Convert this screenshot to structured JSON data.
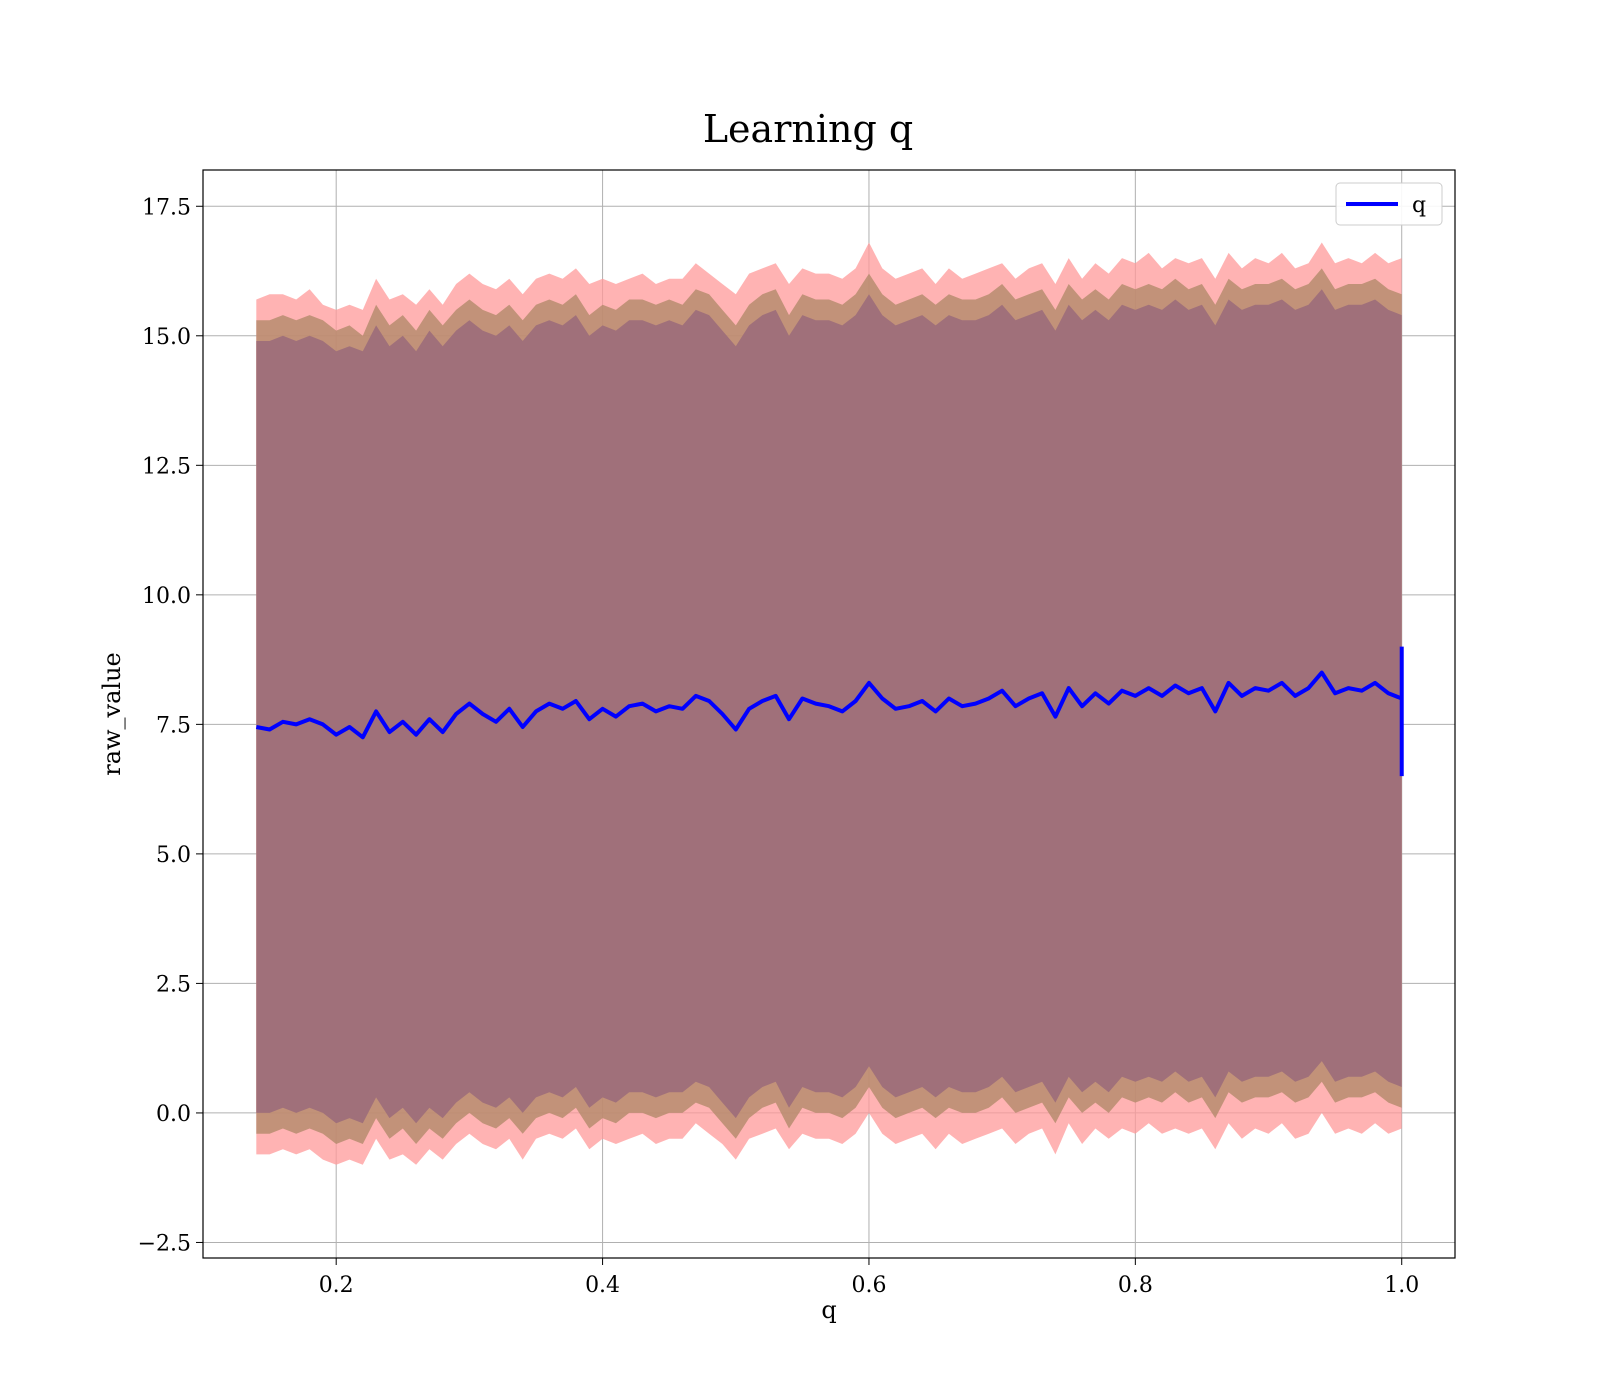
{
  "chart_data": {
    "type": "line",
    "title": "Learning q",
    "xlabel": "q",
    "ylabel": "raw_value",
    "xlim": [
      0.1,
      1.04
    ],
    "ylim": [
      -2.8,
      18.2
    ],
    "xticks": [
      0.2,
      0.4,
      0.6,
      0.8,
      1.0
    ],
    "xtick_labels": [
      "0.2",
      "0.4",
      "0.6",
      "0.8",
      "1.0"
    ],
    "yticks": [
      -2.5,
      0.0,
      2.5,
      5.0,
      7.5,
      10.0,
      12.5,
      15.0,
      17.5
    ],
    "ytick_labels": [
      "−2.5",
      "0.0",
      "2.5",
      "5.0",
      "7.5",
      "10.0",
      "12.5",
      "15.0",
      "17.5"
    ],
    "grid": true,
    "legend": {
      "position": "top-right",
      "entries": [
        "q"
      ]
    },
    "colors": {
      "line": "#0000ff",
      "outer_band": "#ff9999",
      "middle_band": "#b38a6a",
      "inner_band": "#a0707a",
      "grid": "#b0b0b0"
    },
    "series": [
      {
        "name": "q",
        "x": [
          0.14,
          0.15,
          0.16,
          0.17,
          0.18,
          0.19,
          0.2,
          0.21,
          0.22,
          0.23,
          0.24,
          0.25,
          0.26,
          0.27,
          0.28,
          0.29,
          0.3,
          0.31,
          0.32,
          0.33,
          0.34,
          0.35,
          0.36,
          0.37,
          0.38,
          0.39,
          0.4,
          0.41,
          0.42,
          0.43,
          0.44,
          0.45,
          0.46,
          0.47,
          0.48,
          0.49,
          0.5,
          0.51,
          0.52,
          0.53,
          0.54,
          0.55,
          0.56,
          0.57,
          0.58,
          0.59,
          0.6,
          0.61,
          0.62,
          0.63,
          0.64,
          0.65,
          0.66,
          0.67,
          0.68,
          0.69,
          0.7,
          0.71,
          0.72,
          0.73,
          0.74,
          0.75,
          0.76,
          0.77,
          0.78,
          0.79,
          0.8,
          0.81,
          0.82,
          0.83,
          0.84,
          0.85,
          0.86,
          0.87,
          0.88,
          0.89,
          0.9,
          0.91,
          0.92,
          0.93,
          0.94,
          0.95,
          0.96,
          0.97,
          0.98,
          0.99,
          1.0
        ],
        "y": [
          7.45,
          7.4,
          7.55,
          7.5,
          7.6,
          7.5,
          7.3,
          7.45,
          7.25,
          7.75,
          7.35,
          7.55,
          7.3,
          7.6,
          7.35,
          7.7,
          7.9,
          7.7,
          7.55,
          7.8,
          7.45,
          7.75,
          7.9,
          7.8,
          7.95,
          7.6,
          7.8,
          7.65,
          7.85,
          7.9,
          7.75,
          7.85,
          7.8,
          8.05,
          7.95,
          7.7,
          7.4,
          7.8,
          7.95,
          8.05,
          7.6,
          8.0,
          7.9,
          7.85,
          7.75,
          7.95,
          8.3,
          8.0,
          7.8,
          7.85,
          7.95,
          7.75,
          8.0,
          7.85,
          7.9,
          8.0,
          8.15,
          7.85,
          8.0,
          8.1,
          7.65,
          8.2,
          7.85,
          8.1,
          7.9,
          8.15,
          8.05,
          8.2,
          8.05,
          8.25,
          8.1,
          8.2,
          7.75,
          8.3,
          8.05,
          8.2,
          8.15,
          8.3,
          8.05,
          8.2,
          8.5,
          8.1,
          8.2,
          8.15,
          8.3,
          8.1,
          8.0
        ],
        "end_spike": [
          6.5,
          9.0
        ]
      }
    ],
    "bands": [
      {
        "name": "outer",
        "upper": [
          15.7,
          15.8,
          15.8,
          15.7,
          15.9,
          15.6,
          15.5,
          15.6,
          15.5,
          16.1,
          15.7,
          15.8,
          15.6,
          15.9,
          15.6,
          16.0,
          16.2,
          16.0,
          15.9,
          16.1,
          15.8,
          16.1,
          16.2,
          16.1,
          16.3,
          16.0,
          16.1,
          16.0,
          16.1,
          16.2,
          16.0,
          16.1,
          16.1,
          16.4,
          16.2,
          16.0,
          15.8,
          16.2,
          16.3,
          16.4,
          16.0,
          16.3,
          16.2,
          16.2,
          16.1,
          16.3,
          16.8,
          16.3,
          16.1,
          16.2,
          16.3,
          16.0,
          16.3,
          16.1,
          16.2,
          16.3,
          16.4,
          16.1,
          16.3,
          16.4,
          16.0,
          16.5,
          16.1,
          16.4,
          16.2,
          16.5,
          16.4,
          16.6,
          16.3,
          16.5,
          16.4,
          16.5,
          16.1,
          16.6,
          16.3,
          16.5,
          16.4,
          16.6,
          16.3,
          16.4,
          16.8,
          16.4,
          16.5,
          16.4,
          16.6,
          16.4,
          16.5
        ],
        "lower": [
          -0.8,
          -0.8,
          -0.7,
          -0.8,
          -0.7,
          -0.9,
          -1.0,
          -0.9,
          -1.0,
          -0.5,
          -0.9,
          -0.8,
          -1.0,
          -0.7,
          -0.9,
          -0.6,
          -0.4,
          -0.6,
          -0.7,
          -0.5,
          -0.9,
          -0.5,
          -0.4,
          -0.5,
          -0.3,
          -0.7,
          -0.5,
          -0.6,
          -0.5,
          -0.4,
          -0.6,
          -0.5,
          -0.5,
          -0.2,
          -0.4,
          -0.6,
          -0.9,
          -0.5,
          -0.4,
          -0.3,
          -0.7,
          -0.4,
          -0.5,
          -0.5,
          -0.6,
          -0.4,
          0.0,
          -0.4,
          -0.6,
          -0.5,
          -0.4,
          -0.7,
          -0.4,
          -0.6,
          -0.5,
          -0.4,
          -0.3,
          -0.6,
          -0.4,
          -0.3,
          -0.8,
          -0.2,
          -0.6,
          -0.3,
          -0.5,
          -0.3,
          -0.4,
          -0.2,
          -0.4,
          -0.3,
          -0.4,
          -0.3,
          -0.7,
          -0.2,
          -0.5,
          -0.3,
          -0.4,
          -0.2,
          -0.5,
          -0.4,
          0.0,
          -0.4,
          -0.3,
          -0.4,
          -0.2,
          -0.4,
          -0.3
        ]
      },
      {
        "name": "middle",
        "upper": [
          15.3,
          15.3,
          15.4,
          15.3,
          15.4,
          15.3,
          15.1,
          15.2,
          15.0,
          15.6,
          15.2,
          15.4,
          15.1,
          15.5,
          15.2,
          15.5,
          15.7,
          15.5,
          15.4,
          15.6,
          15.3,
          15.6,
          15.7,
          15.6,
          15.8,
          15.4,
          15.6,
          15.5,
          15.7,
          15.7,
          15.6,
          15.7,
          15.6,
          15.9,
          15.8,
          15.5,
          15.2,
          15.6,
          15.8,
          15.9,
          15.4,
          15.8,
          15.7,
          15.7,
          15.6,
          15.8,
          16.2,
          15.8,
          15.6,
          15.7,
          15.8,
          15.6,
          15.8,
          15.7,
          15.7,
          15.8,
          16.0,
          15.7,
          15.8,
          15.9,
          15.5,
          16.0,
          15.7,
          15.9,
          15.7,
          16.0,
          15.9,
          16.0,
          15.9,
          16.1,
          15.9,
          16.0,
          15.6,
          16.1,
          15.9,
          16.0,
          16.0,
          16.1,
          15.9,
          16.0,
          16.3,
          15.9,
          16.0,
          16.0,
          16.1,
          15.9,
          15.8
        ],
        "lower": [
          -0.4,
          -0.4,
          -0.3,
          -0.4,
          -0.3,
          -0.4,
          -0.6,
          -0.5,
          -0.6,
          -0.1,
          -0.5,
          -0.3,
          -0.6,
          -0.3,
          -0.5,
          -0.2,
          0.0,
          -0.2,
          -0.3,
          -0.1,
          -0.4,
          -0.1,
          0.0,
          -0.1,
          0.1,
          -0.3,
          -0.1,
          -0.2,
          0.0,
          0.0,
          -0.1,
          0.0,
          0.0,
          0.2,
          0.1,
          -0.2,
          -0.5,
          -0.1,
          0.1,
          0.2,
          -0.3,
          0.1,
          0.0,
          0.0,
          -0.1,
          0.1,
          0.5,
          0.1,
          -0.1,
          0.0,
          0.1,
          -0.1,
          0.1,
          0.0,
          0.0,
          0.1,
          0.3,
          0.0,
          0.1,
          0.2,
          -0.2,
          0.3,
          0.0,
          0.2,
          0.0,
          0.3,
          0.2,
          0.3,
          0.2,
          0.4,
          0.2,
          0.3,
          -0.1,
          0.4,
          0.2,
          0.3,
          0.3,
          0.4,
          0.2,
          0.3,
          0.6,
          0.2,
          0.3,
          0.3,
          0.4,
          0.2,
          0.1
        ]
      },
      {
        "name": "inner",
        "upper": [
          14.9,
          14.9,
          15.0,
          14.9,
          15.0,
          14.9,
          14.7,
          14.8,
          14.7,
          15.2,
          14.8,
          15.0,
          14.7,
          15.1,
          14.8,
          15.1,
          15.3,
          15.1,
          15.0,
          15.2,
          14.9,
          15.2,
          15.3,
          15.2,
          15.4,
          15.0,
          15.2,
          15.1,
          15.3,
          15.3,
          15.2,
          15.3,
          15.2,
          15.5,
          15.4,
          15.1,
          14.8,
          15.2,
          15.4,
          15.5,
          15.0,
          15.4,
          15.3,
          15.3,
          15.2,
          15.4,
          15.8,
          15.4,
          15.2,
          15.3,
          15.4,
          15.2,
          15.4,
          15.3,
          15.3,
          15.4,
          15.6,
          15.3,
          15.4,
          15.5,
          15.1,
          15.6,
          15.3,
          15.5,
          15.3,
          15.6,
          15.5,
          15.6,
          15.5,
          15.7,
          15.5,
          15.6,
          15.2,
          15.7,
          15.5,
          15.6,
          15.6,
          15.7,
          15.5,
          15.6,
          15.9,
          15.5,
          15.6,
          15.6,
          15.7,
          15.5,
          15.4
        ],
        "lower": [
          0.0,
          0.0,
          0.1,
          0.0,
          0.1,
          0.0,
          -0.2,
          -0.1,
          -0.2,
          0.3,
          -0.1,
          0.1,
          -0.2,
          0.1,
          -0.1,
          0.2,
          0.4,
          0.2,
          0.1,
          0.3,
          0.0,
          0.3,
          0.4,
          0.3,
          0.5,
          0.1,
          0.3,
          0.2,
          0.4,
          0.4,
          0.3,
          0.4,
          0.4,
          0.6,
          0.5,
          0.2,
          -0.1,
          0.3,
          0.5,
          0.6,
          0.1,
          0.5,
          0.4,
          0.4,
          0.3,
          0.5,
          0.9,
          0.5,
          0.3,
          0.4,
          0.5,
          0.3,
          0.5,
          0.4,
          0.4,
          0.5,
          0.7,
          0.4,
          0.5,
          0.6,
          0.2,
          0.7,
          0.4,
          0.6,
          0.4,
          0.7,
          0.6,
          0.7,
          0.6,
          0.8,
          0.6,
          0.7,
          0.3,
          0.8,
          0.6,
          0.7,
          0.7,
          0.8,
          0.6,
          0.7,
          1.0,
          0.6,
          0.7,
          0.7,
          0.8,
          0.6,
          0.5
        ]
      }
    ]
  }
}
